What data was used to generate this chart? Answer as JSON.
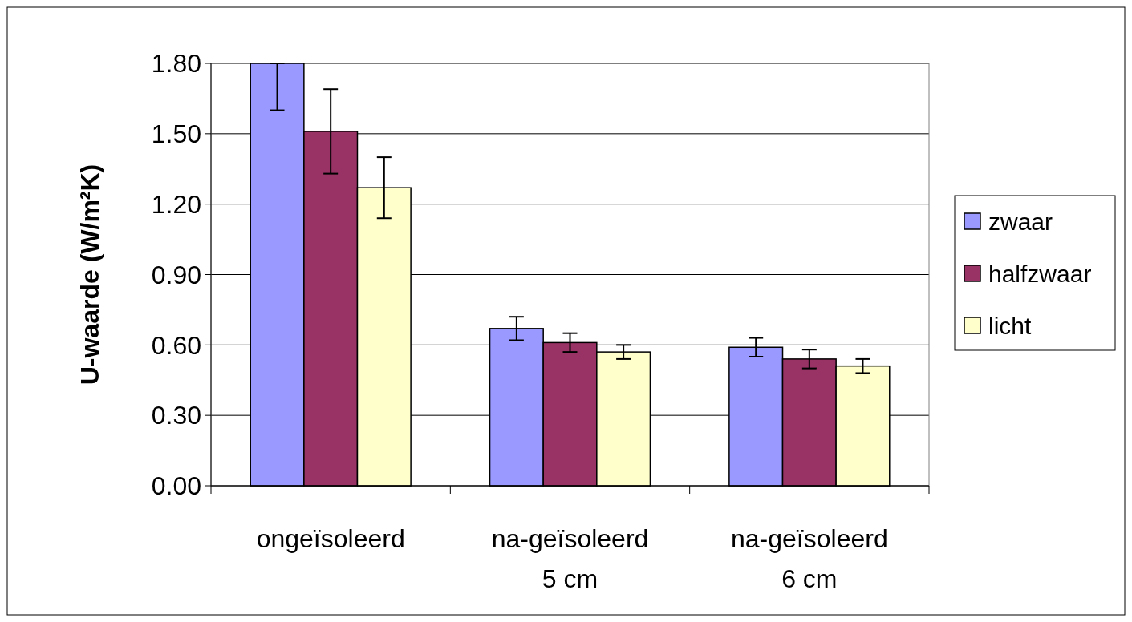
{
  "chart_data": {
    "type": "bar",
    "ylabel": "U-waarde (W/m²K)",
    "categories": [
      "ongeïsoleerd",
      "na-geïsoleerd\n5 cm",
      "na-geïsoleerd\n6 cm"
    ],
    "series": [
      {
        "name": "zwaar",
        "color": "#9999ff",
        "values": [
          1.8,
          0.67,
          0.59
        ],
        "errors": [
          [
            1.6,
            1.8
          ],
          0.05,
          0.04
        ]
      },
      {
        "name": "halfzwaar",
        "color": "#993366",
        "values": [
          1.51,
          0.61,
          0.54
        ],
        "errors": [
          0.18,
          0.04,
          0.04
        ]
      },
      {
        "name": "licht",
        "color": "#ffffcc",
        "values": [
          1.27,
          0.57,
          0.51
        ],
        "errors": [
          0.13,
          0.03,
          0.03
        ]
      }
    ],
    "ylim": [
      0,
      1.8
    ],
    "yticks": [
      {
        "value": 0,
        "label": "0.00"
      },
      {
        "value": 0.3,
        "label": "0.30"
      },
      {
        "value": 0.6,
        "label": "0.60"
      },
      {
        "value": 0.9,
        "label": "0.90"
      },
      {
        "value": 1.2,
        "label": "1.20"
      },
      {
        "value": 1.5,
        "label": "1.50"
      },
      {
        "value": 1.8,
        "label": "1.80"
      }
    ],
    "grid": "y",
    "legend": "right"
  }
}
